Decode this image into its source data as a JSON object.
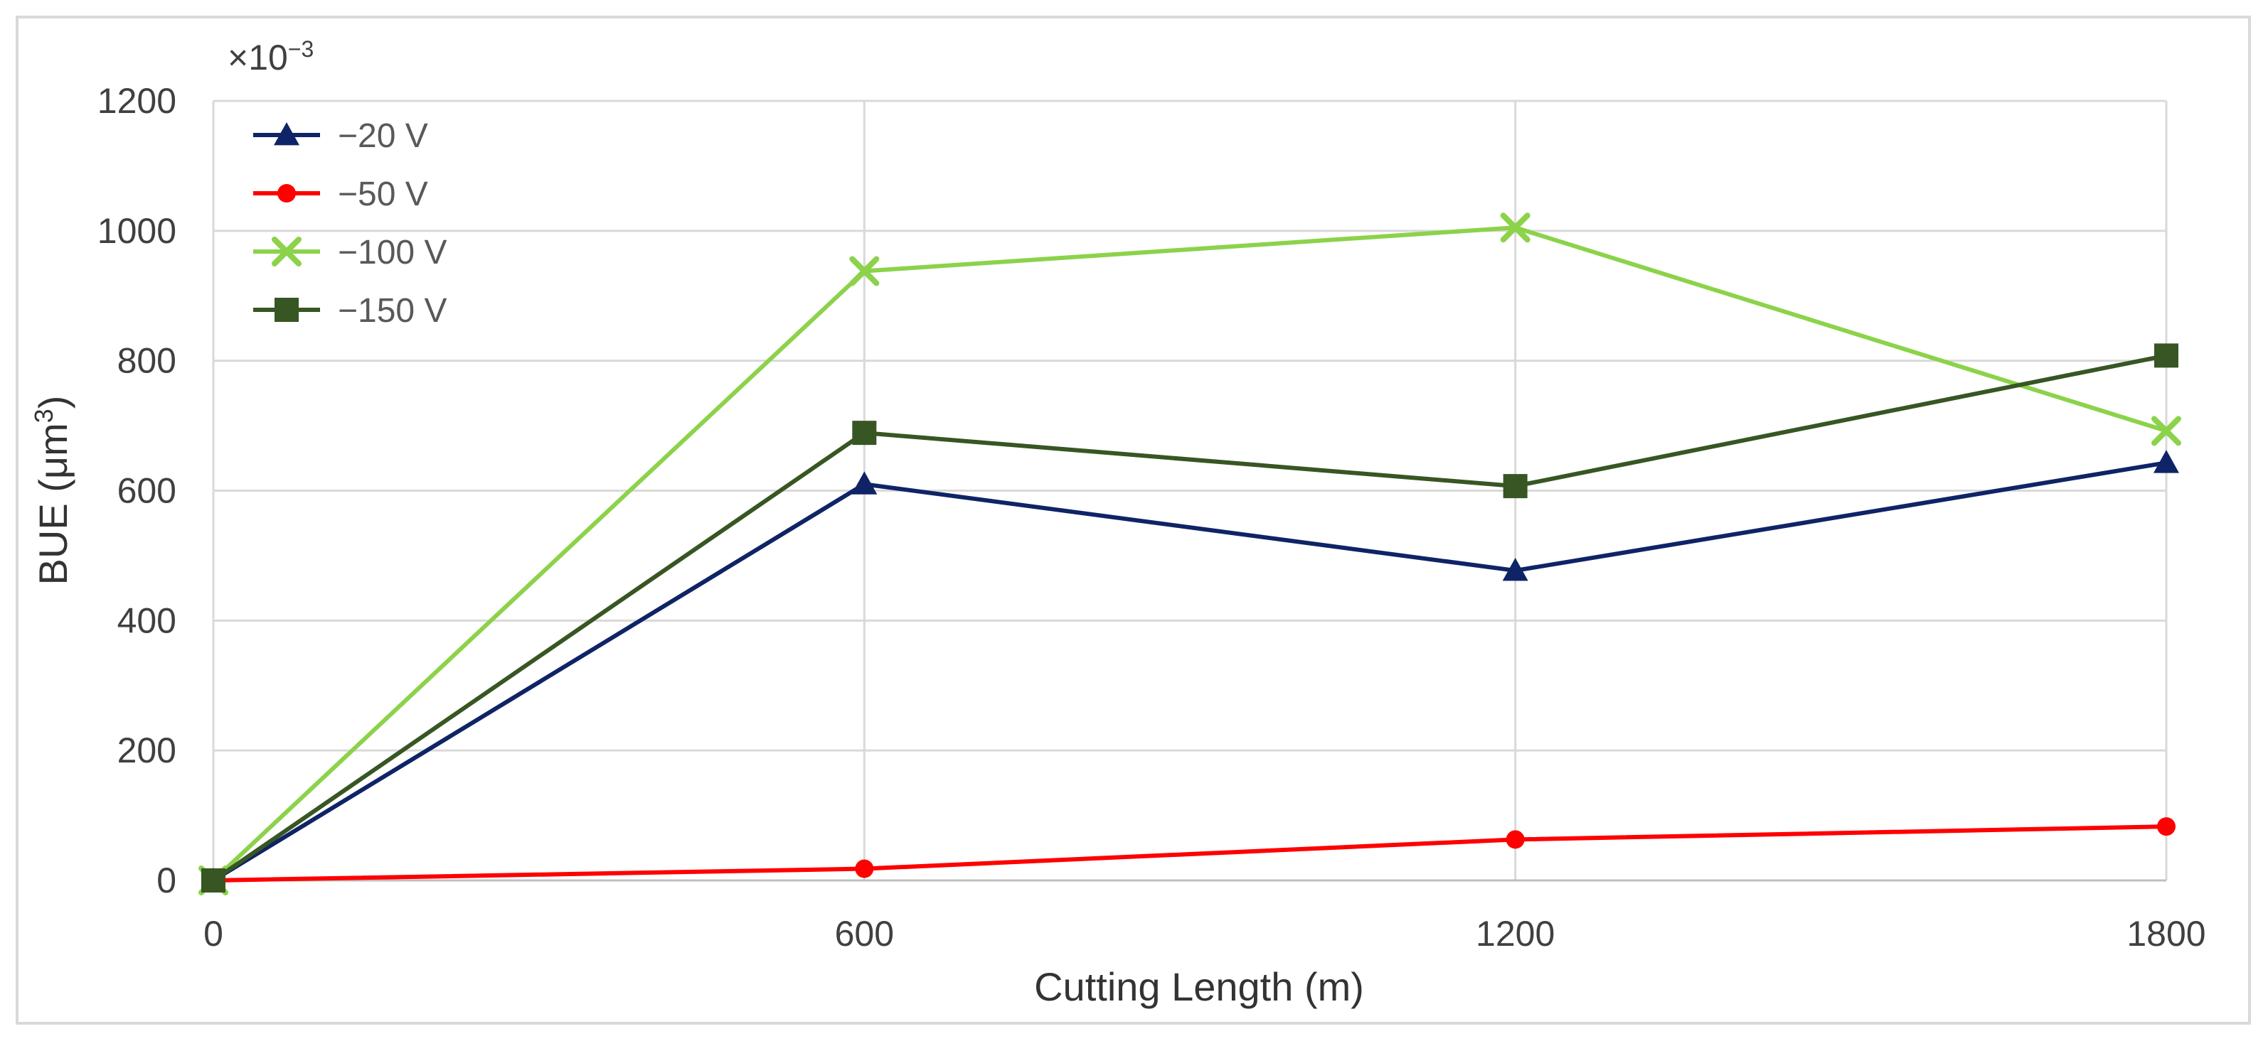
{
  "chart_data": {
    "type": "line",
    "x": [
      0,
      600,
      1200,
      1800
    ],
    "xlabel": "Cutting Length (m)",
    "ylabel_main": "BUE (μm",
    "ylabel_sup": "3",
    "ylabel_close": ")",
    "ylabel": "BUE (μm3)",
    "scale_note_base": "×10",
    "scale_note_exp": "−3",
    "scale_note": "×10−3",
    "xlim": [
      0,
      1800
    ],
    "ylim": [
      0,
      1200
    ],
    "xticks": [
      "0",
      "600",
      "1200",
      "1800"
    ],
    "yticks": [
      "0",
      "200",
      "400",
      "600",
      "800",
      "1000",
      "1200"
    ],
    "grid": true,
    "legend_position": "top-left",
    "series": [
      {
        "name": "−20 V",
        "values": [
          0,
          610,
          477,
          643
        ],
        "color": "#0f2466",
        "marker": "triangle"
      },
      {
        "name": "−50 V",
        "values": [
          0,
          18,
          63,
          83
        ],
        "color": "#ff0000",
        "marker": "circle"
      },
      {
        "name": "−100 V",
        "values": [
          0,
          938,
          1005,
          692
        ],
        "color": "#8cd24a",
        "marker": "x"
      },
      {
        "name": "−150 V",
        "values": [
          0,
          689,
          607,
          808
        ],
        "color": "#375623",
        "marker": "square"
      }
    ]
  }
}
